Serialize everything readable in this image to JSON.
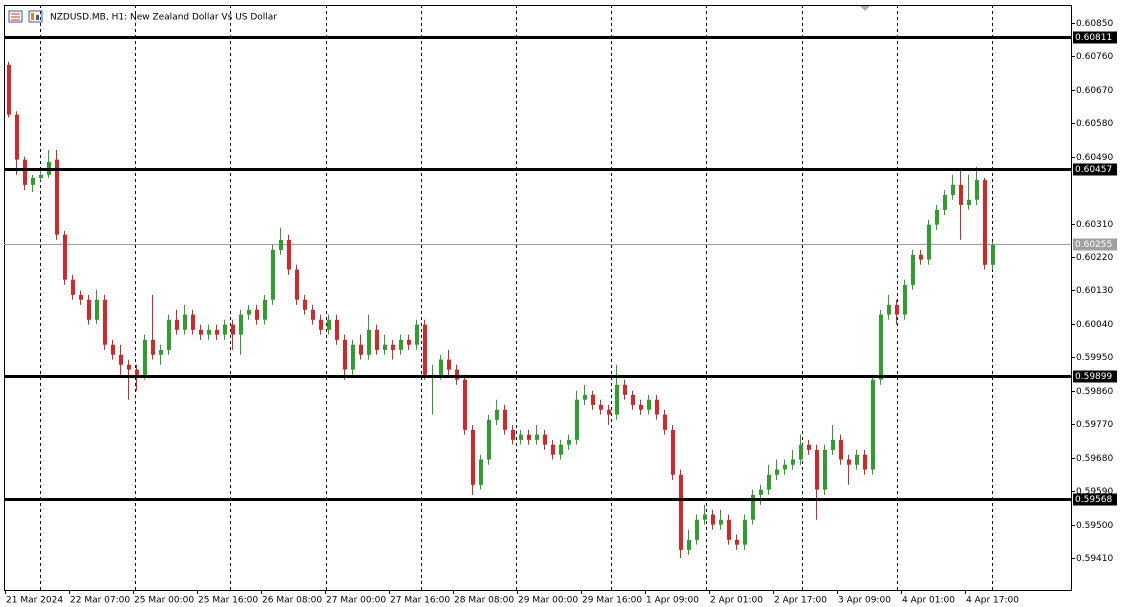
{
  "chart_data": {
    "type": "candlestick",
    "title": "NZDUSD.MB, H1:  New Zealand Dollar Vs US Dollar",
    "up_color": "#2ca02c",
    "down_color": "#d62728",
    "ylim": [
      0.59324,
      0.60898
    ],
    "yticks": [
      {
        "value": 0.6085,
        "label": "0.60850"
      },
      {
        "value": 0.6076,
        "label": "0.60760"
      },
      {
        "value": 0.6067,
        "label": "0.60670"
      },
      {
        "value": 0.6058,
        "label": "0.60580"
      },
      {
        "value": 0.6049,
        "label": "0.60490"
      },
      {
        "value": 0.6031,
        "label": "0.60310"
      },
      {
        "value": 0.6022,
        "label": "0.60220"
      },
      {
        "value": 0.6013,
        "label": "0.60130"
      },
      {
        "value": 0.6004,
        "label": "0.60040"
      },
      {
        "value": 0.5995,
        "label": "0.59950"
      },
      {
        "value": 0.5986,
        "label": "0.59860"
      },
      {
        "value": 0.5977,
        "label": "0.59770"
      },
      {
        "value": 0.5968,
        "label": "0.59680"
      },
      {
        "value": 0.5959,
        "label": "0.59590"
      },
      {
        "value": 0.595,
        "label": "0.59500"
      },
      {
        "value": 0.5941,
        "label": "0.59410"
      }
    ],
    "levels": [
      {
        "value": 0.60811,
        "label": "0.60811"
      },
      {
        "value": 0.60457,
        "label": "0.60457"
      },
      {
        "value": 0.59899,
        "label": "0.59899"
      },
      {
        "value": 0.59568,
        "label": "0.59568"
      }
    ],
    "last_price": {
      "value": 0.60255,
      "label": "0.60255"
    },
    "x_labels": [
      "21 Mar 2024",
      "22 Mar 07:00",
      "25 Mar 00:00",
      "25 Mar 16:00",
      "26 Mar 08:00",
      "27 Mar 00:00",
      "27 Mar 16:00",
      "28 Mar 08:00",
      "29 Mar 00:00",
      "29 Mar 16:00",
      "1 Apr 09:00",
      "2 Apr 01:00",
      "2 Apr 17:00",
      "3 Apr 09:00",
      "4 Apr 01:00",
      "4 Apr 17:00"
    ],
    "ohlc": [
      [
        0.60737,
        0.60745,
        0.60595,
        0.60603
      ],
      [
        0.60603,
        0.60612,
        0.60441,
        0.60482
      ],
      [
        0.60482,
        0.6049,
        0.604,
        0.60414
      ],
      [
        0.60414,
        0.60441,
        0.60395,
        0.60433
      ],
      [
        0.60433,
        0.60452,
        0.60425,
        0.60441
      ],
      [
        0.60441,
        0.60508,
        0.60433,
        0.60476
      ],
      [
        0.60482,
        0.60508,
        0.60266,
        0.6028
      ],
      [
        0.6028,
        0.6029,
        0.60145,
        0.60159
      ],
      [
        0.60159,
        0.60172,
        0.60105,
        0.60118
      ],
      [
        0.60118,
        0.6013,
        0.60091,
        0.60105
      ],
      [
        0.60105,
        0.60118,
        0.60038,
        0.60051
      ],
      [
        0.60051,
        0.60132,
        0.6004,
        0.60105
      ],
      [
        0.60105,
        0.60118,
        0.5997,
        0.59984
      ],
      [
        0.59984,
        0.59997,
        0.59944,
        0.59957
      ],
      [
        0.59957,
        0.59984,
        0.59903,
        0.5993
      ],
      [
        0.5993,
        0.59944,
        0.59836,
        0.59917
      ],
      [
        0.59917,
        0.5993,
        0.5986,
        0.59903
      ],
      [
        0.59903,
        0.60011,
        0.5989,
        0.59997
      ],
      [
        0.59997,
        0.60118,
        0.59944,
        0.59957
      ],
      [
        0.59957,
        0.59984,
        0.5993,
        0.5997
      ],
      [
        0.5997,
        0.60065,
        0.59957,
        0.60051
      ],
      [
        0.60051,
        0.60078,
        0.60011,
        0.60024
      ],
      [
        0.60024,
        0.60091,
        0.60011,
        0.60065
      ],
      [
        0.60065,
        0.60078,
        0.60011,
        0.60024
      ],
      [
        0.60024,
        0.60038,
        0.59997,
        0.60011
      ],
      [
        0.60011,
        0.60038,
        0.59997,
        0.60024
      ],
      [
        0.60024,
        0.60038,
        0.59997,
        0.60011
      ],
      [
        0.60011,
        0.60051,
        0.59997,
        0.60038
      ],
      [
        0.60038,
        0.60051,
        0.5997,
        0.60011
      ],
      [
        0.60011,
        0.60078,
        0.59957,
        0.60065
      ],
      [
        0.60065,
        0.60091,
        0.60051,
        0.60078
      ],
      [
        0.60078,
        0.60091,
        0.60038,
        0.60051
      ],
      [
        0.60051,
        0.60118,
        0.60038,
        0.60105
      ],
      [
        0.60105,
        0.60253,
        0.60091,
        0.60239
      ],
      [
        0.60239,
        0.60299,
        0.60226,
        0.60266
      ],
      [
        0.60266,
        0.6028,
        0.60172,
        0.60186
      ],
      [
        0.60186,
        0.60199,
        0.60091,
        0.60105
      ],
      [
        0.60105,
        0.60118,
        0.60065,
        0.60078
      ],
      [
        0.60078,
        0.60091,
        0.60038,
        0.60051
      ],
      [
        0.60051,
        0.60065,
        0.60011,
        0.60024
      ],
      [
        0.60024,
        0.60065,
        0.60011,
        0.60051
      ],
      [
        0.60051,
        0.60065,
        0.59984,
        0.59997
      ],
      [
        0.59997,
        0.60011,
        0.5989,
        0.59917
      ],
      [
        0.59917,
        0.59997,
        0.59903,
        0.59984
      ],
      [
        0.59984,
        0.60011,
        0.59944,
        0.59957
      ],
      [
        0.59957,
        0.60065,
        0.59944,
        0.60024
      ],
      [
        0.60024,
        0.60038,
        0.59957,
        0.5997
      ],
      [
        0.5997,
        0.60011,
        0.59957,
        0.59984
      ],
      [
        0.59984,
        0.59997,
        0.59944,
        0.5997
      ],
      [
        0.5997,
        0.60011,
        0.59957,
        0.59997
      ],
      [
        0.59997,
        0.60011,
        0.5997,
        0.59984
      ],
      [
        0.59984,
        0.60051,
        0.5997,
        0.60038
      ],
      [
        0.60038,
        0.60051,
        0.5989,
        0.59903
      ],
      [
        0.59903,
        0.5993,
        0.59796,
        0.59903
      ],
      [
        0.59903,
        0.59957,
        0.5989,
        0.59944
      ],
      [
        0.59944,
        0.5997,
        0.59903,
        0.59917
      ],
      [
        0.59917,
        0.5993,
        0.59876,
        0.5989
      ],
      [
        0.5989,
        0.59903,
        0.59742,
        0.59755
      ],
      [
        0.59755,
        0.59768,
        0.5958,
        0.59607
      ],
      [
        0.59607,
        0.59688,
        0.59594,
        0.59675
      ],
      [
        0.59675,
        0.59796,
        0.59661,
        0.59782
      ],
      [
        0.59782,
        0.59836,
        0.59768,
        0.59809
      ],
      [
        0.59809,
        0.59822,
        0.59742,
        0.59755
      ],
      [
        0.59755,
        0.59768,
        0.59715,
        0.59728
      ],
      [
        0.59728,
        0.59755,
        0.59715,
        0.59742
      ],
      [
        0.59742,
        0.59755,
        0.59715,
        0.59728
      ],
      [
        0.59728,
        0.59768,
        0.59715,
        0.59742
      ],
      [
        0.59742,
        0.59755,
        0.59701,
        0.59715
      ],
      [
        0.59715,
        0.59728,
        0.59675,
        0.59688
      ],
      [
        0.59688,
        0.59728,
        0.59675,
        0.59715
      ],
      [
        0.59715,
        0.59742,
        0.59701,
        0.59728
      ],
      [
        0.59728,
        0.5986,
        0.59715,
        0.59836
      ],
      [
        0.59836,
        0.59876,
        0.59822,
        0.59849
      ],
      [
        0.59849,
        0.5986,
        0.59809,
        0.59822
      ],
      [
        0.59822,
        0.59836,
        0.59796,
        0.59809
      ],
      [
        0.59809,
        0.59822,
        0.59768,
        0.59796
      ],
      [
        0.59796,
        0.5993,
        0.59782,
        0.59876
      ],
      [
        0.59876,
        0.5989,
        0.59836,
        0.59849
      ],
      [
        0.59849,
        0.5986,
        0.59809,
        0.59822
      ],
      [
        0.59822,
        0.59836,
        0.59796,
        0.59809
      ],
      [
        0.59809,
        0.59849,
        0.59796,
        0.59836
      ],
      [
        0.59836,
        0.59849,
        0.59782,
        0.59796
      ],
      [
        0.59796,
        0.59809,
        0.59742,
        0.59755
      ],
      [
        0.59755,
        0.59768,
        0.5962,
        0.59634
      ],
      [
        0.59634,
        0.59648,
        0.5941,
        0.59432
      ],
      [
        0.59432,
        0.59486,
        0.59419,
        0.59459
      ],
      [
        0.59459,
        0.59527,
        0.59446,
        0.59513
      ],
      [
        0.59513,
        0.59553,
        0.595,
        0.59527
      ],
      [
        0.59527,
        0.5954,
        0.59486,
        0.595
      ],
      [
        0.595,
        0.5954,
        0.59486,
        0.59513
      ],
      [
        0.59513,
        0.59527,
        0.59446,
        0.59459
      ],
      [
        0.59459,
        0.59473,
        0.59432,
        0.59446
      ],
      [
        0.59446,
        0.59527,
        0.59432,
        0.59513
      ],
      [
        0.59513,
        0.59594,
        0.595,
        0.5958
      ],
      [
        0.5958,
        0.59607,
        0.59553,
        0.59594
      ],
      [
        0.59594,
        0.59661,
        0.5958,
        0.59634
      ],
      [
        0.59634,
        0.59675,
        0.5962,
        0.59648
      ],
      [
        0.59648,
        0.59675,
        0.59634,
        0.59661
      ],
      [
        0.59661,
        0.59701,
        0.59648,
        0.59675
      ],
      [
        0.59675,
        0.59742,
        0.59661,
        0.59715
      ],
      [
        0.59715,
        0.59728,
        0.59688,
        0.59701
      ],
      [
        0.59701,
        0.59715,
        0.59513,
        0.59594
      ],
      [
        0.59594,
        0.59715,
        0.5958,
        0.59701
      ],
      [
        0.59701,
        0.59768,
        0.59688,
        0.59728
      ],
      [
        0.59728,
        0.59742,
        0.59661,
        0.59675
      ],
      [
        0.59675,
        0.59688,
        0.59607,
        0.59661
      ],
      [
        0.59661,
        0.59701,
        0.59648,
        0.59688
      ],
      [
        0.59688,
        0.59701,
        0.59634,
        0.59648
      ],
      [
        0.59648,
        0.59903,
        0.59634,
        0.5989
      ],
      [
        0.5989,
        0.60078,
        0.59876,
        0.60065
      ],
      [
        0.60065,
        0.60118,
        0.60051,
        0.60091
      ],
      [
        0.60091,
        0.60105,
        0.60038,
        0.60065
      ],
      [
        0.60065,
        0.60159,
        0.60051,
        0.60145
      ],
      [
        0.60145,
        0.60239,
        0.60132,
        0.60226
      ],
      [
        0.60226,
        0.60239,
        0.60199,
        0.60213
      ],
      [
        0.60213,
        0.6032,
        0.60199,
        0.60307
      ],
      [
        0.60307,
        0.6036,
        0.60293,
        0.60347
      ],
      [
        0.60347,
        0.604,
        0.60333,
        0.60387
      ],
      [
        0.60387,
        0.60441,
        0.60374,
        0.60414
      ],
      [
        0.60414,
        0.60452,
        0.60266,
        0.6036
      ],
      [
        0.6036,
        0.60441,
        0.60347,
        0.60374
      ],
      [
        0.60374,
        0.60462,
        0.6036,
        0.60427
      ],
      [
        0.60427,
        0.60433,
        0.60186,
        0.60199
      ],
      [
        0.60199,
        0.60262,
        0.60186,
        0.60253
      ]
    ]
  }
}
